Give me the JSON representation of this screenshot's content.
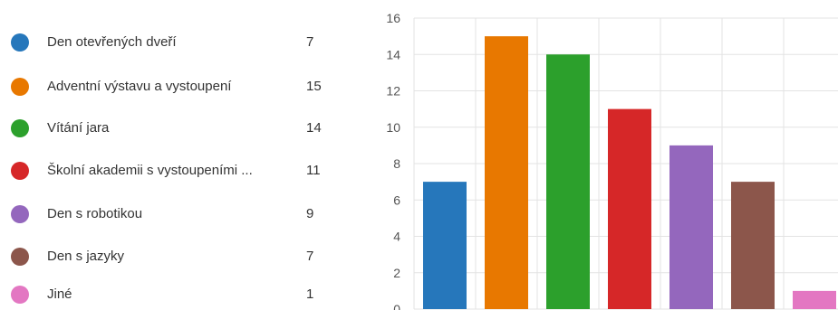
{
  "chart_data": {
    "type": "bar",
    "categories": [
      "Den otevřených dveří",
      "Adventní výstavu a vystoupení",
      "Vítání jara",
      "Školní akademii s vystoupeními ...",
      "Den s robotikou",
      "Den s jazyky",
      "Jiné"
    ],
    "values": [
      7,
      15,
      14,
      11,
      9,
      7,
      1
    ],
    "colors": [
      "#2677BB",
      "#E87800",
      "#2CA02C",
      "#D62728",
      "#9467BD",
      "#8C564B",
      "#E377C2"
    ],
    "ylim": [
      0,
      16
    ],
    "yticks": [
      0,
      2,
      4,
      6,
      8,
      10,
      12,
      14,
      16
    ],
    "grid": true,
    "legend_position": "left"
  }
}
